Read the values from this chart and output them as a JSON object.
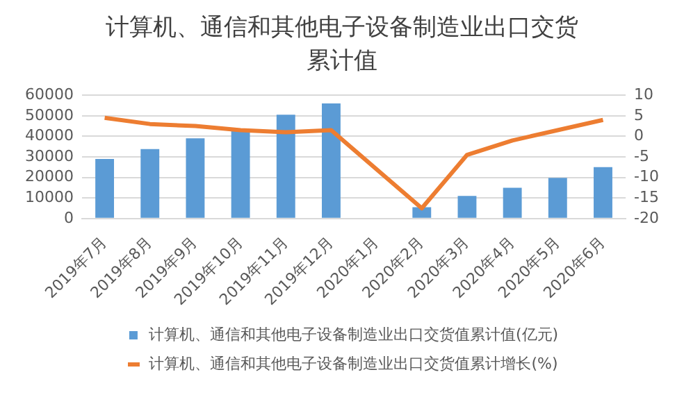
{
  "chart_data": {
    "type": "bar",
    "title": "计算机、通信和其他电子设备制造业出口交货累计值",
    "categories": [
      "2019年7月",
      "2019年8月",
      "2019年9月",
      "2019年10月",
      "2019年11月",
      "2019年12月",
      "2020年1月",
      "2020年2月",
      "2020年3月",
      "2020年4月",
      "2020年5月",
      "2020年6月"
    ],
    "series": [
      {
        "name": "计算机、通信和其他电子设备制造业出口交货值累计值(亿元)",
        "color": "#5b9bd5",
        "values": [
          29000,
          33800,
          39000,
          43500,
          50500,
          56000,
          null,
          5500,
          11000,
          15000,
          19800,
          25000
        ]
      },
      {
        "name": "计算机、通信和其他电子设备制造业出口交货值累计增长(%)",
        "type": "line",
        "axis": "y2",
        "color": "#ed7d31",
        "values": [
          4.5,
          3,
          2.5,
          1.5,
          1,
          1.5,
          null,
          -17.5,
          -4.5,
          -1,
          1.5,
          4
        ]
      }
    ],
    "ylim": [
      0,
      60000
    ],
    "yticks": [
      0,
      10000,
      20000,
      30000,
      40000,
      50000,
      60000
    ],
    "y2lim": [
      -20,
      10
    ],
    "y2ticks": [
      -20,
      -15,
      -10,
      -5,
      0,
      5,
      10
    ],
    "grid": "y",
    "legend": "bottom",
    "marker": "none",
    "line_style": "solid"
  }
}
